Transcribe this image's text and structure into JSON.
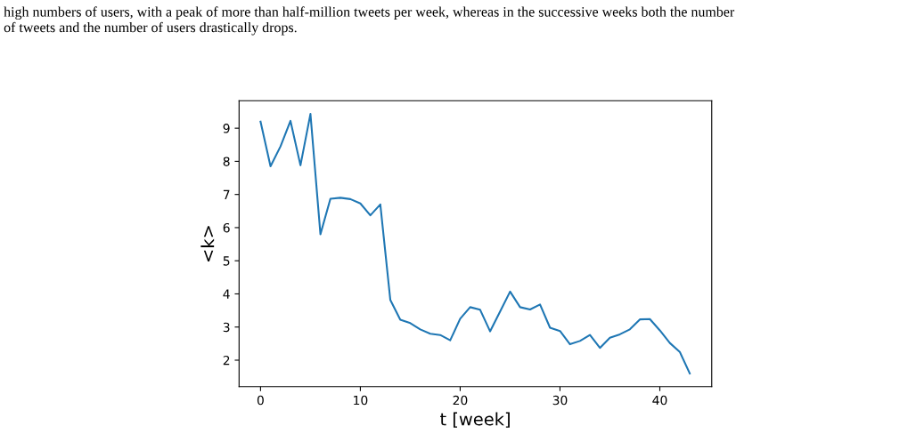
{
  "chart_data": {
    "type": "line",
    "xlabel": "t [week]",
    "ylabel": "<k>",
    "annotations": [
      "high numbers of users, with a peak of more than half-million tweets per week, whereas in the successive weeks both the number\nof tweets and the number of users drastically drops."
    ],
    "x": [
      0,
      1,
      2,
      3,
      4,
      5,
      6,
      7,
      8,
      9,
      10,
      11,
      12,
      13,
      14,
      15,
      16,
      17,
      18,
      19,
      20,
      21,
      22,
      23,
      24,
      25,
      26,
      27,
      28,
      29,
      30,
      31,
      32,
      33,
      34,
      35,
      36,
      37,
      38,
      39,
      40,
      41,
      42,
      43
    ],
    "series": [
      {
        "color": "#1f77b4",
        "values": [
          9.2,
          7.85,
          8.45,
          9.22,
          7.88,
          9.43,
          5.8,
          6.87,
          6.9,
          6.86,
          6.73,
          6.37,
          6.7,
          3.82,
          3.22,
          3.12,
          2.93,
          2.8,
          2.76,
          2.6,
          3.25,
          3.6,
          3.52,
          2.87,
          3.47,
          4.07,
          3.6,
          3.53,
          3.68,
          2.98,
          2.88,
          2.48,
          2.58,
          2.76,
          2.37,
          2.68,
          2.78,
          2.93,
          3.23,
          3.24,
          2.9,
          2.52,
          2.25,
          1.6
        ]
      }
    ],
    "xlim": [
      -2.15,
      45.2
    ],
    "ylim": [
      1.2,
      9.83
    ],
    "xticks": [
      0,
      10,
      20,
      30,
      40
    ],
    "yticks": [
      2,
      3,
      4,
      5,
      6,
      7,
      8,
      9
    ],
    "grid": false,
    "legend": false
  }
}
